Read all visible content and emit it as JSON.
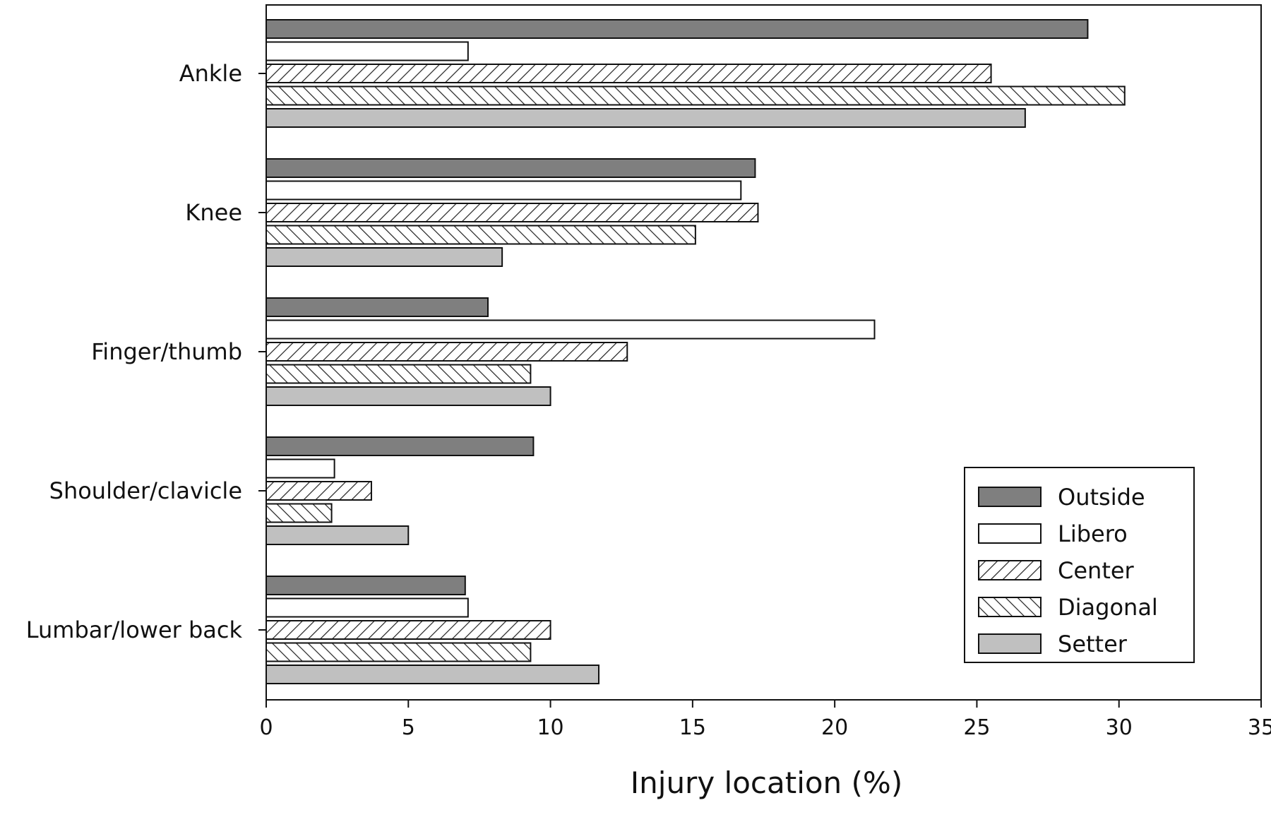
{
  "chart_data": {
    "type": "bar",
    "orientation": "horizontal",
    "categories": [
      "Ankle",
      "Knee",
      "Finger/thumb",
      "Shoulder/clavicle",
      "Lumbar/lower back"
    ],
    "series": [
      {
        "name": "Outside",
        "pattern": "solid-dark",
        "color": "#7f7f7f",
        "values": [
          28.9,
          17.2,
          7.8,
          9.4,
          7.0
        ]
      },
      {
        "name": "Libero",
        "pattern": "solid-white",
        "color": "#ffffff",
        "values": [
          7.1,
          16.7,
          21.4,
          2.4,
          7.1
        ]
      },
      {
        "name": "Center",
        "pattern": "forward-hatch",
        "color": "#ffffff",
        "values": [
          25.5,
          17.3,
          12.7,
          3.7,
          10.0
        ]
      },
      {
        "name": "Diagonal",
        "pattern": "back-hatch",
        "color": "#ffffff",
        "values": [
          30.2,
          15.1,
          9.3,
          2.3,
          9.3
        ]
      },
      {
        "name": "Setter",
        "pattern": "solid-light",
        "color": "#c0c0c0",
        "values": [
          26.7,
          8.3,
          10.0,
          5.0,
          11.7
        ]
      }
    ],
    "xlabel": "Injury location (%)",
    "ylabel": "",
    "xlim": [
      0,
      35
    ],
    "xticks": [
      "0",
      "5",
      "10",
      "15",
      "20",
      "25",
      "30",
      "35"
    ],
    "grid": false,
    "legend_position": "bottom-right"
  }
}
